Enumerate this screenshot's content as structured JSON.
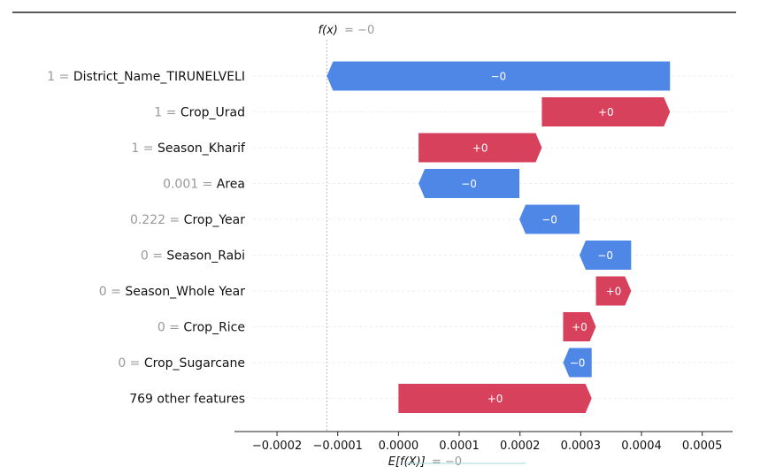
{
  "chart_data": {
    "type": "waterfall",
    "fx_label": "f(x)",
    "fx_value": "= −0",
    "ex_label": "E[f(X)]",
    "ex_value": "= −0",
    "x_ticks": [
      "−0.0002",
      "−0.0001",
      "0.0000",
      "0.0001",
      "0.0002",
      "0.0003",
      "0.0004",
      "0.0005"
    ],
    "x_tick_values": [
      -0.0002,
      -0.0001,
      0.0,
      0.0001,
      0.0002,
      0.0003,
      0.0004,
      0.0005
    ],
    "xlim": [
      -0.00027,
      0.00055
    ],
    "fx_x": -0.000118,
    "colors": {
      "positive": "#d7415c",
      "negative": "#4f87e6"
    },
    "rows": [
      {
        "value": "1",
        "feature": "District_Name_TIRUNELVELI",
        "start": 0.000447,
        "end": -0.000118,
        "label": "−0",
        "sign": "negative"
      },
      {
        "value": "1",
        "feature": "Crop_Urad",
        "start": 0.000236,
        "end": 0.000447,
        "label": "+0",
        "sign": "positive"
      },
      {
        "value": "1",
        "feature": "Season_Kharif",
        "start": 3.3e-05,
        "end": 0.000236,
        "label": "+0",
        "sign": "positive"
      },
      {
        "value": "0.001",
        "feature": "Area",
        "start": 0.000199,
        "end": 3.3e-05,
        "label": "−0",
        "sign": "negative"
      },
      {
        "value": "0.222",
        "feature": "Crop_Year",
        "start": 0.000298,
        "end": 0.000199,
        "label": "−0",
        "sign": "negative"
      },
      {
        "value": "0",
        "feature": "Season_Rabi",
        "start": 0.000383,
        "end": 0.000298,
        "label": "−0",
        "sign": "negative"
      },
      {
        "value": "0",
        "feature": "Season_Whole Year",
        "start": 0.000325,
        "end": 0.000383,
        "label": "+0",
        "sign": "positive"
      },
      {
        "value": "0",
        "feature": "Crop_Rice",
        "start": 0.000271,
        "end": 0.000325,
        "label": "+0",
        "sign": "positive"
      },
      {
        "value": "0",
        "feature": "Crop_Sugarcane",
        "start": 0.000318,
        "end": 0.000271,
        "label": "−0",
        "sign": "negative"
      },
      {
        "value": "",
        "feature": "769 other features",
        "start": 0.0,
        "end": 0.000318,
        "label": "+0",
        "sign": "positive"
      }
    ]
  }
}
